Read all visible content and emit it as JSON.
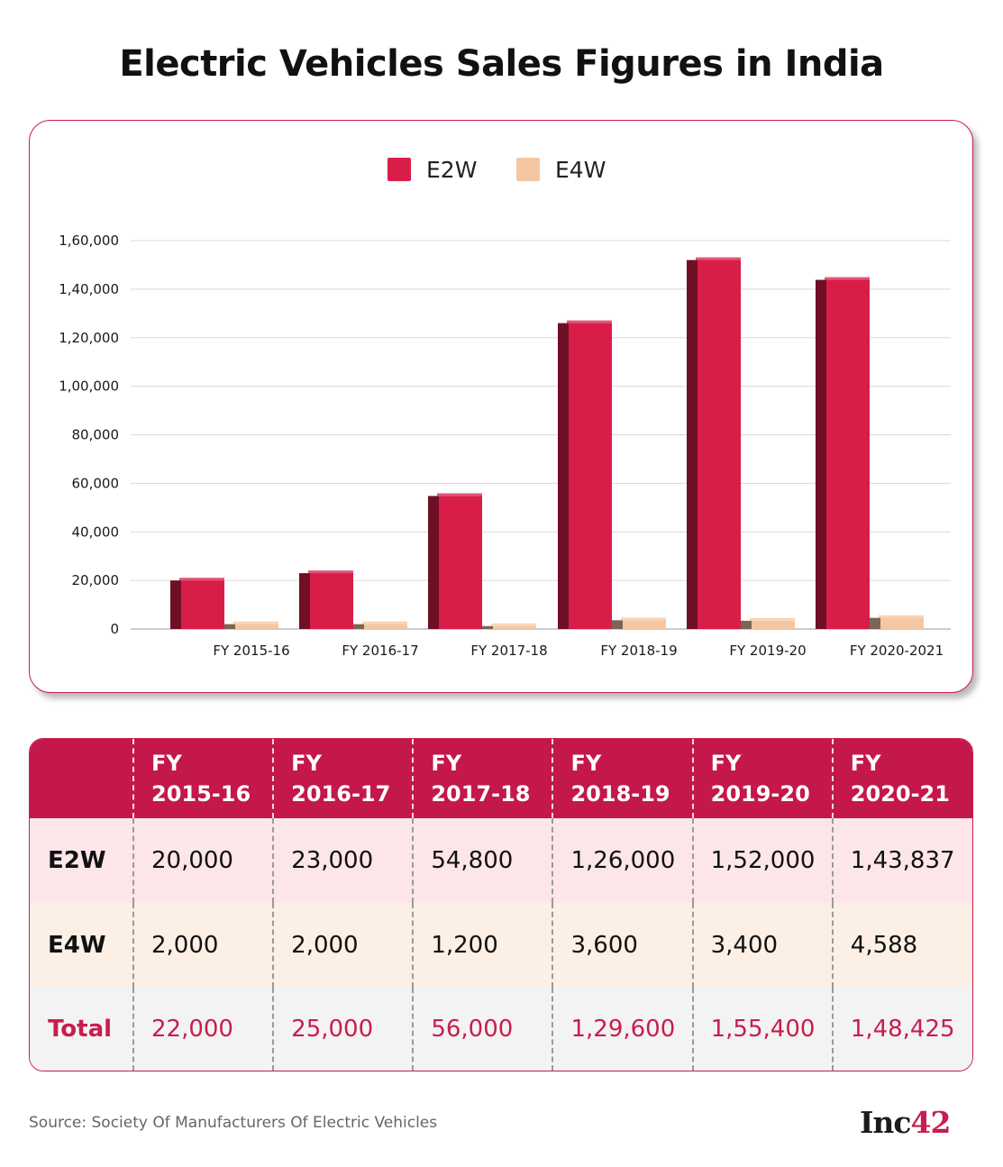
{
  "title": "Electric Vehicles Sales Figures in India",
  "chart_data": {
    "type": "bar",
    "categories": [
      "FY 2015-16",
      "FY 2016-17",
      "FY 2017-18",
      "FY 2018-19",
      "FY 2019-20",
      "FY 2020-2021"
    ],
    "series": [
      {
        "name": "E2W",
        "values": [
          20000,
          23000,
          54800,
          126000,
          152000,
          143837
        ],
        "color": "#d81e48",
        "side_color": "#6e0f26"
      },
      {
        "name": "E4W",
        "values": [
          2000,
          2000,
          1200,
          3600,
          3400,
          4588
        ],
        "color": "#f4c7a2",
        "side_color": "#7d6553"
      }
    ],
    "ylim": [
      0,
      160000
    ],
    "yticks": [
      0,
      20000,
      40000,
      60000,
      80000,
      100000,
      120000,
      140000,
      160000
    ],
    "ytick_labels": [
      "0",
      "20,000",
      "40,000",
      "60,000",
      "80,000",
      "1,00,000",
      "1,20,000",
      "1,40,000",
      "1,60,000"
    ],
    "legend_position": "top-center",
    "grid": true
  },
  "table": {
    "headers": [
      [
        "FY",
        "2015-16"
      ],
      [
        "FY",
        "2016-17"
      ],
      [
        "FY",
        "2017-18"
      ],
      [
        "FY",
        "2018-19"
      ],
      [
        "FY",
        "2019-20"
      ],
      [
        "FY",
        "2020-21"
      ]
    ],
    "rows": [
      {
        "label": "E2W",
        "values": [
          "20,000",
          "23,000",
          "54,800",
          "1,26,000",
          "1,52,000",
          "1,43,837"
        ]
      },
      {
        "label": "E4W",
        "values": [
          "2,000",
          "2,000",
          "1,200",
          "3,600",
          "3,400",
          "4,588"
        ]
      },
      {
        "label": "Total",
        "values": [
          "22,000",
          "25,000",
          "56,000",
          "1,29,600",
          "1,55,400",
          "1,48,425"
        ]
      }
    ]
  },
  "source": "Source: Society Of Manufacturers Of Electric Vehicles",
  "logo": {
    "text": "Inc",
    "number": "42"
  }
}
